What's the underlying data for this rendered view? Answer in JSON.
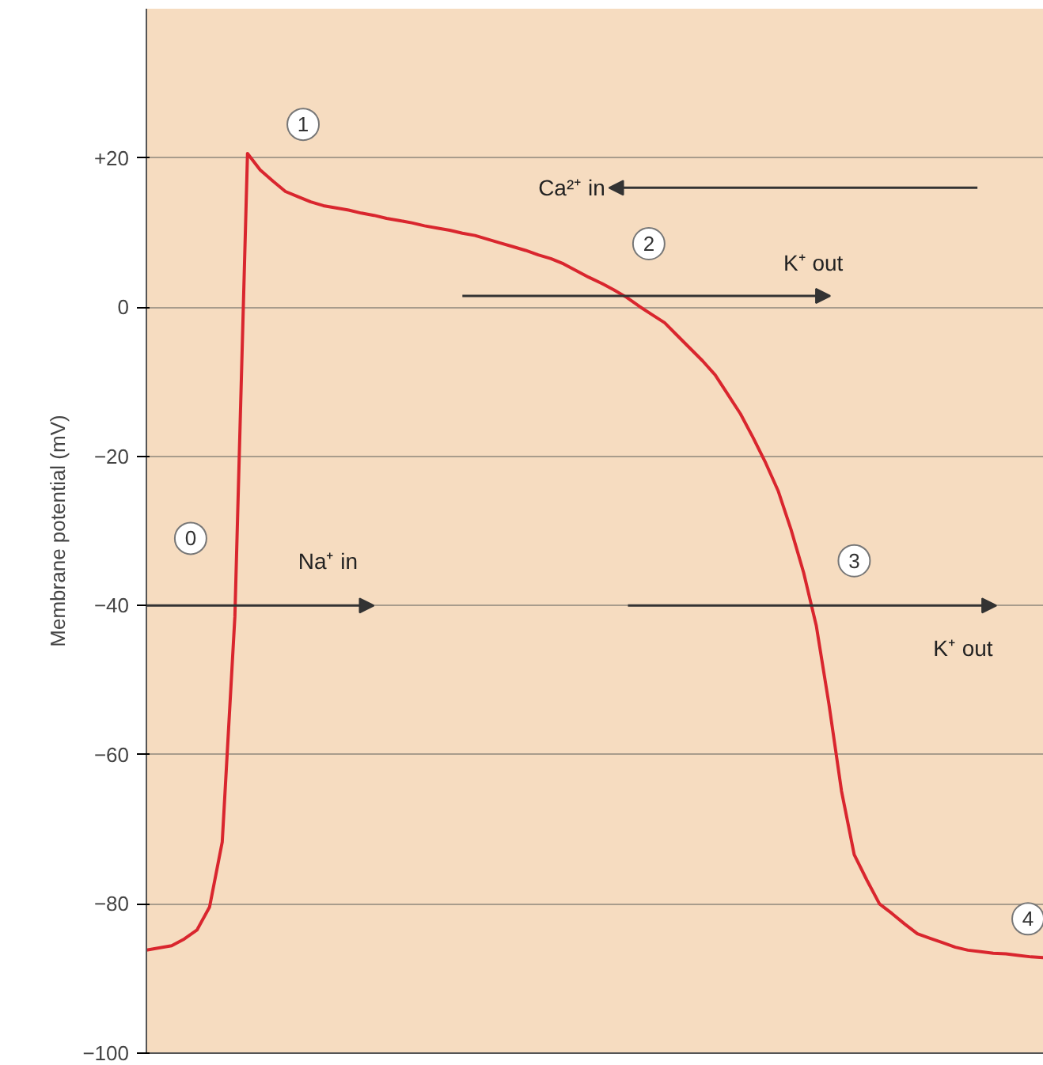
{
  "chart_data": {
    "type": "line",
    "ylabel": "Membrane potential (mV)",
    "categories": [
      null,
      null,
      null,
      null,
      null,
      null,
      null,
      null,
      null,
      null,
      null,
      null,
      null,
      null,
      null,
      null,
      null,
      null,
      null,
      null,
      null,
      null,
      null,
      null,
      null,
      null,
      null,
      null,
      null,
      null,
      null,
      null,
      null,
      null,
      null,
      null,
      null,
      null,
      null,
      null,
      null,
      null,
      null,
      null,
      null,
      null,
      null,
      null,
      null,
      null,
      null,
      null,
      null,
      null,
      null,
      null,
      null,
      null,
      null,
      null,
      null,
      null,
      null,
      null,
      null,
      null,
      null,
      null,
      null,
      null,
      null,
      null
    ],
    "series": [
      {
        "color": "#d9262e",
        "values": [
          -86.2,
          -85.9,
          -85.6,
          -84.7,
          -83.5,
          -80.4,
          -71.7,
          -41.5,
          20.6,
          18.4,
          16.9,
          15.5,
          14.8,
          14.1,
          13.6,
          13.3,
          13.0,
          12.6,
          12.3,
          11.9,
          11.6,
          11.3,
          10.9,
          10.6,
          10.3,
          9.9,
          9.6,
          9.1,
          8.6,
          8.1,
          7.6,
          7.0,
          6.5,
          5.8,
          4.9,
          4.0,
          3.2,
          2.3,
          1.3,
          0.1,
          -1.0,
          -2.1,
          -3.8,
          -5.5,
          -7.2,
          -9.1,
          -11.7,
          -14.3,
          -17.5,
          -20.9,
          -24.7,
          -29.8,
          -35.6,
          -42.7,
          -53.2,
          -64.9,
          -73.4,
          -76.8,
          -80.0,
          -81.3,
          -82.7,
          -84.0,
          -84.6,
          -85.2,
          -85.8,
          -86.2,
          -86.4,
          -86.6,
          -86.7,
          -86.9,
          -87.1,
          -87.2
        ]
      }
    ],
    "ylim": [
      -100,
      40
    ],
    "yticks": [
      {
        "value": 20,
        "label": "+20"
      },
      0,
      -20,
      -40,
      -60,
      -80,
      -100
    ],
    "grid": "y",
    "tick_labels": "y",
    "marker": "none",
    "line_style": "solid",
    "annotations": [
      "1",
      "Ca²⁺ in",
      "2",
      "K⁺ out",
      "0",
      "Na⁺ in",
      "3",
      "K⁺ out",
      "4"
    ]
  }
}
